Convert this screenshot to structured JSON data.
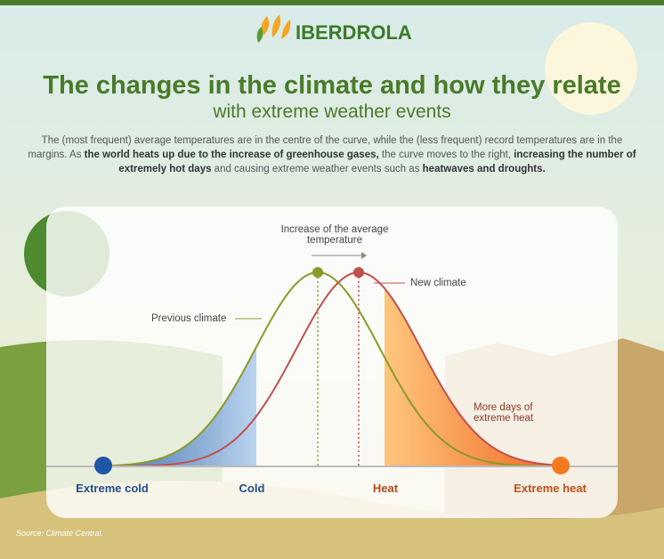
{
  "logo": "IBERDROLA",
  "title": {
    "line1": "The changes in the climate and how they relate",
    "line2": "with extreme weather events"
  },
  "description": [
    {
      "text": "The (most frequent) average temperatures are in the centre of the curve, while the (less frequent) record temperatures are in the margins. As ",
      "bold": false
    },
    {
      "text": "the world heats up due to the increase of greenhouse gases,",
      "bold": true
    },
    {
      "text": " the curve moves to the right, ",
      "bold": false
    },
    {
      "text": "increasing the number of extremely hot days",
      "bold": true
    },
    {
      "text": " and causing extreme weather events such as ",
      "bold": false
    },
    {
      "text": "heatwaves and droughts.",
      "bold": true
    }
  ],
  "labels": {
    "increase": "Increase of the average temperature",
    "previous": "Previous climate",
    "new": "New climate",
    "more_days": "More days of extreme heat"
  },
  "axis": [
    "Extreme cold",
    "Cold",
    "Heat",
    "Extreme heat"
  ],
  "source": "Source: Climate Central."
}
